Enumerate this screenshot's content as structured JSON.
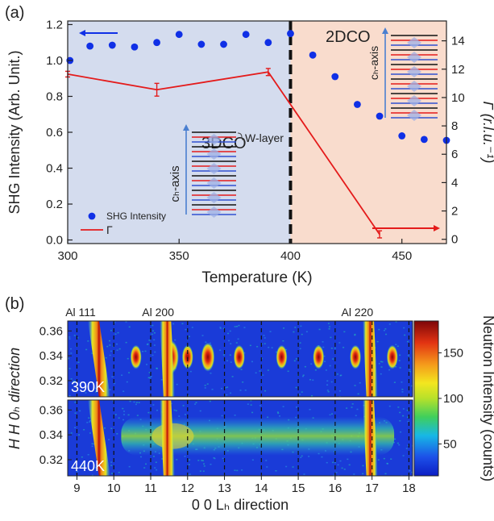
{
  "chart_data": [
    {
      "type": "scatter",
      "panel_label": "(a)",
      "xlabel": "Temperature (K)",
      "ylabel_left": "SHG Intensity (Arb. Unit.)",
      "ylabel_right": "Γ (r.l.u.⁻¹)",
      "xlim": [
        300,
        470
      ],
      "ylim_left": [
        -0.02,
        1.22
      ],
      "ylim_right": [
        -0.3,
        15.4
      ],
      "x_ticks": [
        "300",
        "350",
        "400",
        "450"
      ],
      "y_left_ticks": [
        "0.0",
        "0.2",
        "0.4",
        "0.6",
        "0.8",
        "1.0",
        "1.2"
      ],
      "y_right_ticks": [
        "0",
        "2",
        "4",
        "6",
        "8",
        "10",
        "12",
        "14"
      ],
      "regions": [
        {
          "label": "3DCO",
          "from": 300,
          "to": 400,
          "color": "#d4dcee"
        },
        {
          "label": "2DCO",
          "from": 400,
          "to": 470,
          "color": "#f9dccd"
        }
      ],
      "transition_x": 400,
      "annotation": "W-layer",
      "axis_annotation": "cₕ-axis",
      "series": [
        {
          "name": "SHG Intensity",
          "axis": "left",
          "color": "#1030e6",
          "x": [
            301,
            310,
            320,
            330,
            340,
            350,
            360,
            370,
            380,
            390,
            400,
            410,
            420,
            430,
            440,
            450,
            460,
            470
          ],
          "y": [
            1.0,
            1.08,
            1.085,
            1.075,
            1.1,
            1.145,
            1.09,
            1.09,
            1.145,
            1.1,
            1.15,
            1.03,
            0.91,
            0.755,
            0.69,
            0.58,
            0.56,
            0.555
          ]
        },
        {
          "name": "Γ",
          "axis": "right",
          "color": "#e41b1b",
          "x": [
            300,
            340,
            390,
            440
          ],
          "y": [
            11.65,
            10.55,
            11.8,
            0.35
          ],
          "error": [
            0.2,
            0.45,
            0.25,
            0.25
          ]
        }
      ]
    },
    {
      "type": "heatmap",
      "panel_label": "(b)",
      "xlabel": "0 0 Lₕ direction",
      "ylabel": "H H 0ₕ direction",
      "colorbar_label": "Neutron Intensity (counts)",
      "x_ticks": [
        "9",
        "10",
        "11",
        "12",
        "13",
        "14",
        "15",
        "16",
        "17",
        "18"
      ],
      "y_ticks": [
        "0.36",
        "0.34",
        "0.32"
      ],
      "colorbar_ticks": [
        "150",
        "100",
        "50"
      ],
      "colorbar_range": [
        15,
        185
      ],
      "xlim": [
        8.75,
        18.1
      ],
      "ylim": [
        0.307,
        0.368
      ],
      "peak_labels": [
        {
          "text": "Al 111",
          "x": 9.1
        },
        {
          "text": "Al 200",
          "x": 11.2
        },
        {
          "text": "Al 220",
          "x": 16.6
        }
      ],
      "dashed_lines_x": [
        9,
        10,
        11,
        12,
        13,
        14,
        15,
        16,
        17,
        18
      ],
      "panels": [
        {
          "label": "390K",
          "background_color": "#1a3bd8",
          "al_lines": [
            {
              "x": 9.6,
              "tilt": 0.3
            },
            {
              "x": 11.45,
              "tilt": 0.1
            },
            {
              "x": 16.95,
              "tilt": 0.1
            }
          ],
          "peaks": [
            {
              "L": 10.6,
              "H": 0.339
            },
            {
              "L": 11.55,
              "H": 0.339
            },
            {
              "L": 12.0,
              "H": 0.339
            },
            {
              "L": 12.55,
              "H": 0.339
            },
            {
              "L": 13.4,
              "H": 0.339
            },
            {
              "L": 14.55,
              "H": 0.339
            },
            {
              "L": 15.55,
              "H": 0.339
            },
            {
              "L": 16.55,
              "H": 0.339
            },
            {
              "L": 17.55,
              "H": 0.339
            }
          ]
        },
        {
          "label": "440K",
          "background_color": "#1a3bd8",
          "al_lines": [
            {
              "x": 9.6,
              "tilt": 0.3
            },
            {
              "x": 11.45,
              "tilt": 0.1
            },
            {
              "x": 16.95,
              "tilt": 0.1
            }
          ],
          "diffuse_band": {
            "H": 0.339,
            "L_from": 10.2,
            "L_to": 17.6
          }
        }
      ]
    }
  ]
}
